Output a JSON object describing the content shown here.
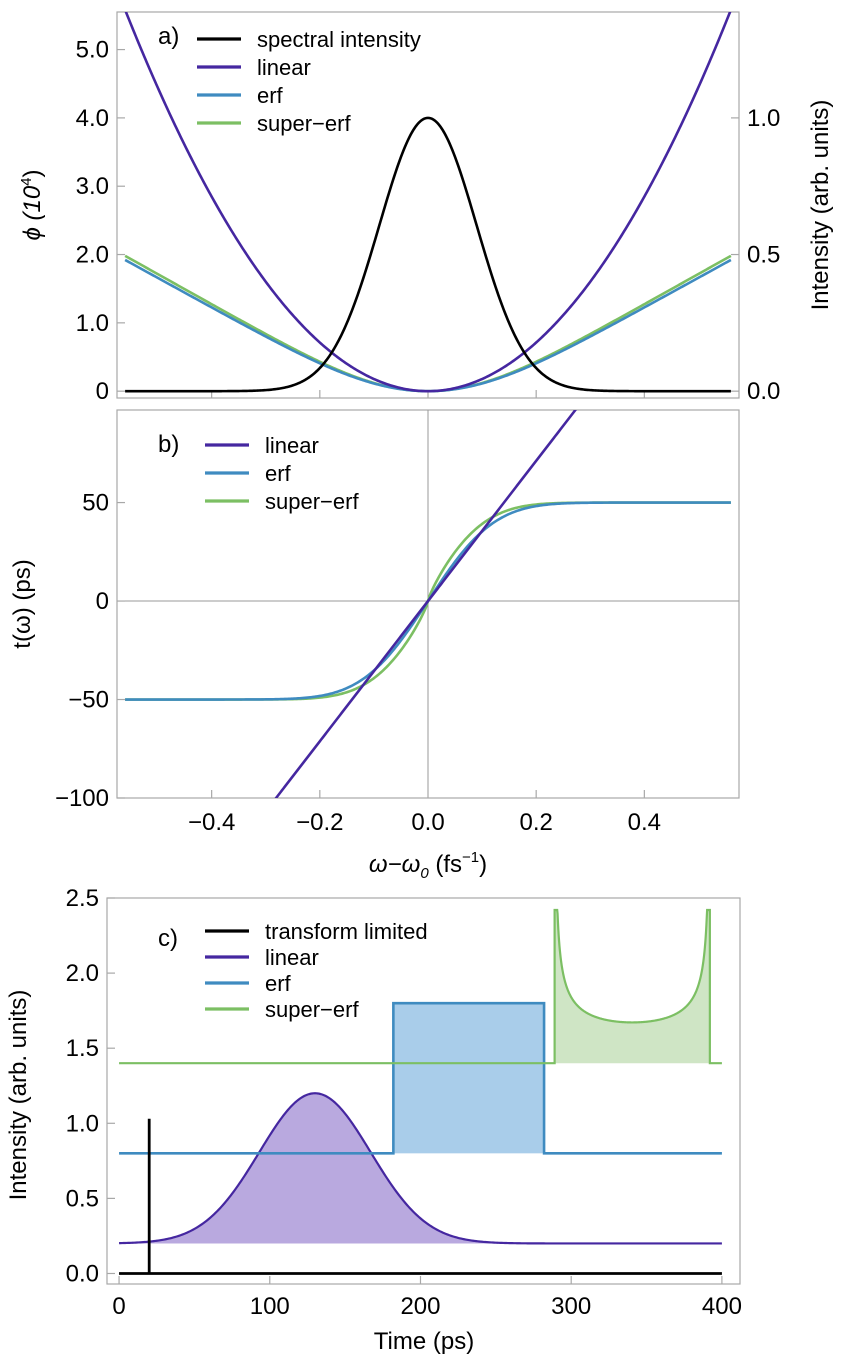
{
  "colors": {
    "black": "#000000",
    "linear": "#4527a0",
    "erf": "#3f8bc0",
    "super_erf": "#7cbf63",
    "linear_fill": "#b9a9df",
    "erf_fill": "#a9cdea",
    "super_erf_fill": "#cfe5c5"
  },
  "chart_data": [
    {
      "id": "a",
      "type": "line",
      "panel_label": "a)",
      "xlim": [
        -0.575,
        0.575
      ],
      "ylim": [
        -0.1,
        5.55
      ],
      "y2lim": [
        -0.025,
        1.3875
      ],
      "ylabel_prefix": "ϕ (10",
      "ylabel_sup": "4",
      "ylabel_suffix": ")",
      "y2label": "Intensity (arb. units)",
      "yticks": [
        "0",
        "1.0",
        "2.0",
        "3.0",
        "4.0",
        "5.0"
      ],
      "y2ticks": [
        "0.0",
        "0.5",
        "1.0"
      ],
      "legend_position": "top-center",
      "series": [
        {
          "key": "spectral",
          "name": "spectral intensity",
          "color": "black",
          "axis": "right",
          "model": "gaussian",
          "peak": 1.0,
          "sigma": 0.09
        },
        {
          "key": "linear",
          "name": "linear",
          "color": "linear",
          "axis": "left",
          "model": "parabola",
          "coef": 17.8
        },
        {
          "key": "erf",
          "name": "erf",
          "color": "erf",
          "axis": "left",
          "model": "erf_phase",
          "slope": 4.35,
          "width": 0.21
        },
        {
          "key": "super_erf",
          "name": "super−erf",
          "color": "super_erf",
          "axis": "left",
          "model": "erf_phase",
          "slope": 4.43,
          "width": 0.2
        }
      ]
    },
    {
      "id": "b",
      "type": "line",
      "panel_label": "b)",
      "xlim": [
        -0.575,
        0.575
      ],
      "ylim": [
        -100,
        97
      ],
      "ylabel": "t(ω) (ps)",
      "xlabel_prefix": "ω−ω",
      "xlabel_sub": "0",
      "xlabel_suffix": " (fs",
      "xlabel_sup": "−1",
      "xlabel_end": ")",
      "yticks": [
        "−100",
        "−50",
        "0",
        "50"
      ],
      "xticks": [
        "−0.4",
        "−0.2",
        "0.0",
        "0.2",
        "0.4"
      ],
      "legend_position": "top-left",
      "series": [
        {
          "key": "linear",
          "name": "linear",
          "color": "linear",
          "model": "line",
          "slope": 356
        },
        {
          "key": "erf",
          "name": "erf",
          "color": "erf",
          "model": "erf",
          "amplitude": 50,
          "width": 0.135
        },
        {
          "key": "super_erf",
          "name": "super−erf",
          "color": "super_erf",
          "model": "super_erf",
          "amplitude": 50,
          "width": 0.125
        }
      ]
    },
    {
      "id": "c",
      "type": "area",
      "panel_label": "c)",
      "xlim": [
        -8,
        412
      ],
      "ylim": [
        -0.07,
        2.5
      ],
      "xlabel": "Time (ps)",
      "ylabel": "Intensity (arb. units)",
      "yticks": [
        "0.0",
        "0.5",
        "1.0",
        "1.5",
        "2.0",
        "2.5"
      ],
      "xticks": [
        "0",
        "100",
        "200",
        "300",
        "400"
      ],
      "legend_position": "top-center",
      "series": [
        {
          "key": "tl",
          "name": "transform limited",
          "color": "black",
          "baseline": 0.0,
          "model": "spike",
          "at": 20,
          "peak": 1.03
        },
        {
          "key": "linear",
          "name": "linear",
          "color": "linear",
          "fill": "linear_fill",
          "baseline": 0.2,
          "model": "gaussian",
          "center": 130,
          "sigma": 37,
          "peak": 1.0
        },
        {
          "key": "erf",
          "name": "erf",
          "color": "erf",
          "fill": "erf_fill",
          "baseline": 0.8,
          "model": "box",
          "start": 182,
          "end": 282,
          "height": 1.0
        },
        {
          "key": "super_erf",
          "name": "super−erf",
          "color": "super_erf",
          "fill": "super_erf_fill",
          "baseline": 1.4,
          "model": "horns",
          "start": 289,
          "end": 392,
          "level": 0.28,
          "peak": 1.02
        }
      ]
    }
  ]
}
